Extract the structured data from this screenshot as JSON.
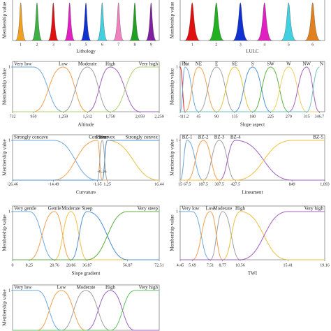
{
  "chart_data": [
    {
      "type": "peaks",
      "xlabel": "Lithology",
      "ylabel": "Membership value",
      "categories": [
        "1",
        "2",
        "3",
        "4",
        "5",
        "6",
        "7",
        "8",
        "9"
      ],
      "values": [
        1,
        1,
        1,
        1,
        1,
        1,
        1,
        1,
        1
      ],
      "colors": [
        "#f0a020",
        "#3cb043",
        "#e01010",
        "#e020c0",
        "#1030d0",
        "#40d0e0",
        "#f080c0",
        "#20a020",
        "#8020a0"
      ]
    },
    {
      "type": "peaks",
      "xlabel": "LULC",
      "ylabel": "Membership value",
      "categories": [
        "1",
        "2",
        "3",
        "4",
        "5",
        "6"
      ],
      "values": [
        1,
        1,
        1,
        1,
        1,
        1
      ],
      "colors": [
        "#e01010",
        "#20b020",
        "#1030d0",
        "#e020c0",
        "#40d0e0",
        "#e08020"
      ]
    },
    {
      "type": "line",
      "xlabel": "Altitude",
      "ylabel": "Membership value",
      "x": [
        732,
        950,
        1259,
        1512,
        1750,
        2059,
        2259
      ],
      "xlim": [
        732,
        2259
      ],
      "xticks": [
        732,
        950,
        {
          "value": 1259,
          "label": "1,259"
        },
        {
          "value": 1512,
          "label": "1,512"
        },
        {
          "value": 1750,
          "label": "1,750"
        },
        {
          "value": 2059,
          "label": "2,059"
        },
        {
          "value": 2259,
          "label": "2,259"
        }
      ],
      "ylim": [
        0,
        1
      ],
      "yticks": [
        1
      ],
      "series": [
        {
          "name": "Very low",
          "color": "#6fa8dc",
          "values": [
            1,
            1,
            0,
            0,
            0,
            0,
            0
          ]
        },
        {
          "name": "Low",
          "color": "#f0a050",
          "values": [
            0,
            0,
            1,
            0,
            0,
            0,
            0
          ]
        },
        {
          "name": "Moderate",
          "color": "#a0a0a0",
          "values": [
            0,
            0,
            0,
            1,
            0,
            0,
            0
          ]
        },
        {
          "name": "High",
          "color": "#a060c0",
          "values": [
            0,
            0,
            0,
            0,
            1,
            0,
            0
          ]
        },
        {
          "name": "Very high",
          "color": "#b0d070",
          "values": [
            0,
            0,
            0,
            0,
            0,
            1,
            1
          ]
        }
      ]
    },
    {
      "type": "line",
      "xlabel": "Slope aspect",
      "ylabel": "Membership value",
      "x": [
        -1,
        11.2,
        45,
        90,
        135,
        180,
        225,
        270,
        315,
        346.7
      ],
      "xlim": [
        -1,
        360
      ],
      "xticks": [
        -1,
        11.2,
        45,
        90,
        135,
        180,
        225,
        270,
        315,
        346.7
      ],
      "ylim": [
        0,
        1
      ],
      "yticks": [
        1
      ],
      "series": [
        {
          "name": "Flat",
          "color": "#e02020",
          "values": [
            1,
            0,
            0,
            0,
            0,
            0,
            0,
            0,
            0,
            0
          ]
        },
        {
          "name": "N",
          "color": "#6fa8dc",
          "values": [
            0,
            1,
            0,
            0,
            0,
            0,
            0,
            0,
            0,
            0
          ]
        },
        {
          "name": "NE",
          "color": "#f0a050",
          "values": [
            0,
            0,
            1,
            0,
            0,
            0,
            0,
            0,
            0,
            0
          ]
        },
        {
          "name": "E",
          "color": "#a0a0a0",
          "values": [
            0,
            0,
            0,
            1,
            0,
            0,
            0,
            0,
            0,
            0
          ]
        },
        {
          "name": "SE",
          "color": "#e8c040",
          "values": [
            0,
            0,
            0,
            0,
            1,
            0,
            0,
            0,
            0,
            0
          ]
        },
        {
          "name": "S",
          "color": "#5090d0",
          "values": [
            0,
            0,
            0,
            0,
            0,
            1,
            0,
            0,
            0,
            0
          ]
        },
        {
          "name": "SW",
          "color": "#60b040",
          "values": [
            0,
            0,
            0,
            0,
            0,
            0,
            1,
            0,
            0,
            0
          ]
        },
        {
          "name": "W",
          "color": "#f0d060",
          "values": [
            0,
            0,
            0,
            0,
            0,
            0,
            0,
            1,
            0,
            0
          ]
        },
        {
          "name": "NW",
          "color": "#a060c0",
          "values": [
            0,
            0,
            0,
            0,
            0,
            0,
            0,
            0,
            1,
            0
          ]
        },
        {
          "name": "N",
          "color": "#70c0c0",
          "values": [
            0,
            0,
            0,
            0,
            0,
            0,
            0,
            0,
            0,
            1
          ]
        }
      ]
    },
    {
      "type": "line",
      "xlabel": "Curvature",
      "ylabel": "Membership value",
      "x": [
        -26.46,
        -14.49,
        -1.65,
        -0.26,
        1.25,
        16.44
      ],
      "xlim": [
        -26.46,
        16.44
      ],
      "xticks": [
        -26.46,
        -14.49,
        -1.65,
        1.25,
        16.44
      ],
      "annotations": [
        {
          "label": "-0.26",
          "x": -0.26
        }
      ],
      "ylim": [
        0,
        1
      ],
      "yticks": [
        1
      ],
      "series": [
        {
          "name": "Strongly concave",
          "color": "#6fa8dc",
          "values": [
            1,
            1,
            0,
            0,
            0,
            0
          ]
        },
        {
          "name": "Concave",
          "color": "#f0a050",
          "values": [
            0,
            0,
            1,
            0,
            0,
            0
          ]
        },
        {
          "name": "Planar",
          "color": "#a0a0a0",
          "values": [
            0,
            0,
            0,
            1,
            0,
            0
          ]
        },
        {
          "name": "Convex",
          "color": "#e8c040",
          "values": [
            0,
            0,
            0,
            0,
            1,
            0
          ]
        },
        {
          "name": "Strongly convex",
          "color": "#5090d0",
          "values": [
            0,
            0,
            0,
            0,
            1,
            1
          ]
        }
      ]
    },
    {
      "type": "line",
      "xlabel": "Lineament",
      "ylabel": "Membership value",
      "x": [
        15,
        67.5,
        187.5,
        307.5,
        427.5,
        849,
        1093
      ],
      "xlim": [
        15,
        1093
      ],
      "xticks": [
        15,
        67.5,
        187.5,
        307.5,
        427.5,
        849,
        {
          "value": 1093,
          "label": "1,093"
        }
      ],
      "ylim": [
        0,
        1
      ],
      "yticks": [
        1
      ],
      "series": [
        {
          "name": "BZ-1",
          "color": "#6fa8dc",
          "values": [
            0,
            1,
            0,
            0,
            0,
            0,
            0
          ]
        },
        {
          "name": "BZ-2",
          "color": "#f0a050",
          "values": [
            0,
            0,
            1,
            0,
            0,
            0,
            0
          ]
        },
        {
          "name": "BZ-3",
          "color": "#a0a0a0",
          "values": [
            0,
            0,
            0,
            1,
            0,
            0,
            0
          ]
        },
        {
          "name": "BZ-4",
          "color": "#a060c0",
          "values": [
            0,
            0,
            0,
            0,
            1,
            0,
            0
          ]
        },
        {
          "name": "BZ-5",
          "color": "#f0c040",
          "values": [
            0,
            0,
            0,
            0,
            0,
            1,
            1
          ]
        }
      ]
    },
    {
      "type": "line",
      "xlabel": "Slope gradient",
      "ylabel": "Membership value",
      "x": [
        0,
        8.25,
        20.76,
        28.86,
        36.87,
        56.87,
        72.51
      ],
      "xlim": [
        0,
        72.51
      ],
      "xticks": [
        0,
        8.25,
        20.76,
        28.86,
        36.87,
        56.87,
        72.51
      ],
      "ylim": [
        0,
        1
      ],
      "yticks": [
        1
      ],
      "series": [
        {
          "name": "Very gentle",
          "color": "#6fa8dc",
          "values": [
            1,
            1,
            0,
            0,
            0,
            0,
            0
          ]
        },
        {
          "name": "Gentle",
          "color": "#f0a050",
          "values": [
            0,
            0,
            1,
            0,
            0,
            0,
            0
          ]
        },
        {
          "name": "Moderate",
          "color": "#f0c040",
          "values": [
            0,
            0,
            0,
            1,
            0,
            0,
            0
          ]
        },
        {
          "name": "Steep",
          "color": "#5090d0",
          "values": [
            0,
            0,
            0,
            0,
            1,
            0,
            0
          ]
        },
        {
          "name": "Very steep",
          "color": "#60b040",
          "values": [
            0,
            0,
            0,
            0,
            0,
            1,
            1
          ]
        }
      ]
    },
    {
      "type": "line",
      "xlabel": "TWI",
      "ylabel": "Membership value",
      "x": [
        4.45,
        5.69,
        7.51,
        8.77,
        10.56,
        15.41,
        19.16
      ],
      "xlim": [
        4.45,
        19.16
      ],
      "xticks": [
        4.45,
        5.69,
        7.51,
        8.77,
        10.56,
        15.41,
        19.16
      ],
      "ylim": [
        0,
        1
      ],
      "yticks": [
        1
      ],
      "series": [
        {
          "name": "Very low",
          "color": "#6fa8dc",
          "values": [
            1,
            1,
            0,
            0,
            0,
            0,
            0
          ]
        },
        {
          "name": "Low",
          "color": "#f0a050",
          "values": [
            0,
            0,
            1,
            0,
            0,
            0,
            0
          ]
        },
        {
          "name": "Moderate",
          "color": "#a0a0a0",
          "values": [
            0,
            0,
            0,
            1,
            0,
            0,
            0
          ]
        },
        {
          "name": "High",
          "color": "#e8c040",
          "values": [
            0,
            0,
            0,
            0,
            1,
            0,
            0
          ]
        },
        {
          "name": "Very high",
          "color": "#a060c0",
          "values": [
            0,
            0,
            0,
            0,
            0,
            1,
            1
          ]
        }
      ]
    },
    {
      "type": "line",
      "ylabel": "Membership value",
      "categories": [
        null,
        null,
        null,
        null,
        null,
        null,
        null
      ],
      "ylim": [
        0,
        1
      ],
      "yticks": [
        1
      ],
      "series": [
        {
          "name": "Very low",
          "color": "#6fa8dc",
          "values": [
            1,
            1,
            0,
            0,
            0,
            0,
            0
          ]
        },
        {
          "name": "Low",
          "color": "#f0a050",
          "values": [
            0,
            0,
            1,
            0,
            0,
            0,
            0
          ]
        },
        {
          "name": "Moderate",
          "color": "#a0a0a0",
          "values": [
            0,
            0,
            0,
            1,
            0,
            0,
            0
          ]
        },
        {
          "name": "High",
          "color": "#a060c0",
          "values": [
            0,
            0,
            0,
            0,
            1,
            0,
            0
          ]
        },
        {
          "name": "Very high",
          "color": "#60c060",
          "values": [
            0,
            0,
            0,
            0,
            0,
            1,
            1
          ]
        }
      ]
    }
  ]
}
